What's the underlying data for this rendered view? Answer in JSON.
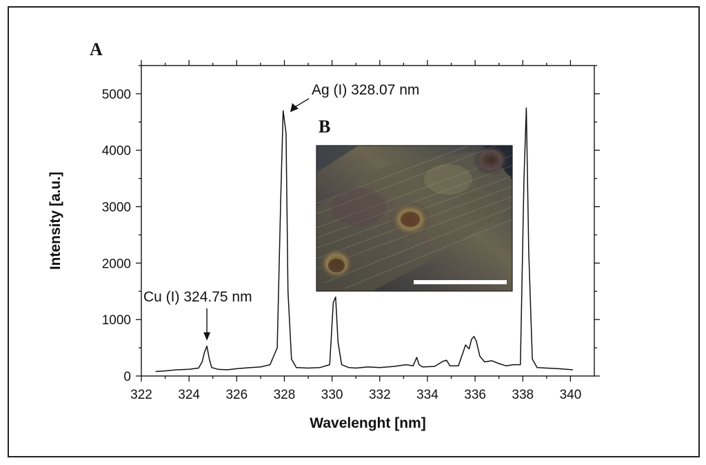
{
  "panel_labels": {
    "a": "A",
    "b": "B"
  },
  "chart_data": {
    "type": "line",
    "xlabel": "Wavelenght [nm]",
    "ylabel": "Intensity [a.u.]",
    "xlim": [
      322,
      341
    ],
    "ylim": [
      0,
      5500
    ],
    "xticks": [
      322,
      324,
      326,
      328,
      330,
      332,
      334,
      336,
      338,
      340
    ],
    "yticks": [
      0,
      1000,
      2000,
      3000,
      4000,
      5000
    ],
    "grid": false,
    "series": [
      {
        "color": "#111111",
        "x": [
          322.6,
          323.0,
          323.5,
          324.0,
          324.4,
          324.55,
          324.65,
          324.75,
          324.85,
          324.95,
          325.2,
          325.6,
          326.0,
          326.6,
          327.0,
          327.4,
          327.7,
          327.85,
          327.95,
          328.07,
          328.15,
          328.3,
          328.5,
          329.0,
          329.5,
          329.9,
          330.05,
          330.15,
          330.25,
          330.4,
          330.7,
          331.0,
          331.5,
          332.0,
          332.6,
          333.1,
          333.4,
          333.55,
          333.65,
          333.8,
          334.3,
          334.65,
          334.8,
          334.95,
          335.3,
          335.6,
          335.75,
          335.85,
          335.95,
          336.05,
          336.2,
          336.4,
          336.7,
          337.0,
          337.3,
          337.6,
          337.9,
          338.05,
          338.15,
          338.25,
          338.4,
          338.6,
          339.0,
          339.5,
          340.1
        ],
        "values": [
          80,
          90,
          110,
          120,
          140,
          250,
          420,
          530,
          300,
          150,
          120,
          110,
          130,
          150,
          160,
          200,
          500,
          3200,
          4700,
          4300,
          1500,
          300,
          150,
          140,
          150,
          200,
          1300,
          1400,
          600,
          200,
          150,
          140,
          160,
          150,
          170,
          200,
          180,
          330,
          200,
          160,
          170,
          260,
          280,
          180,
          180,
          550,
          480,
          650,
          700,
          620,
          350,
          250,
          270,
          220,
          180,
          200,
          200,
          3500,
          4750,
          2200,
          300,
          150,
          140,
          130,
          110
        ]
      }
    ],
    "annotations": [
      {
        "text": "Ag (I) 328.07 nm",
        "x": 328.07,
        "y": 4700
      },
      {
        "text": "Cu (I) 324.75 nm",
        "x": 324.75,
        "y": 530
      }
    ]
  },
  "inset": {
    "description_hidden": false,
    "scale_bar": true
  }
}
